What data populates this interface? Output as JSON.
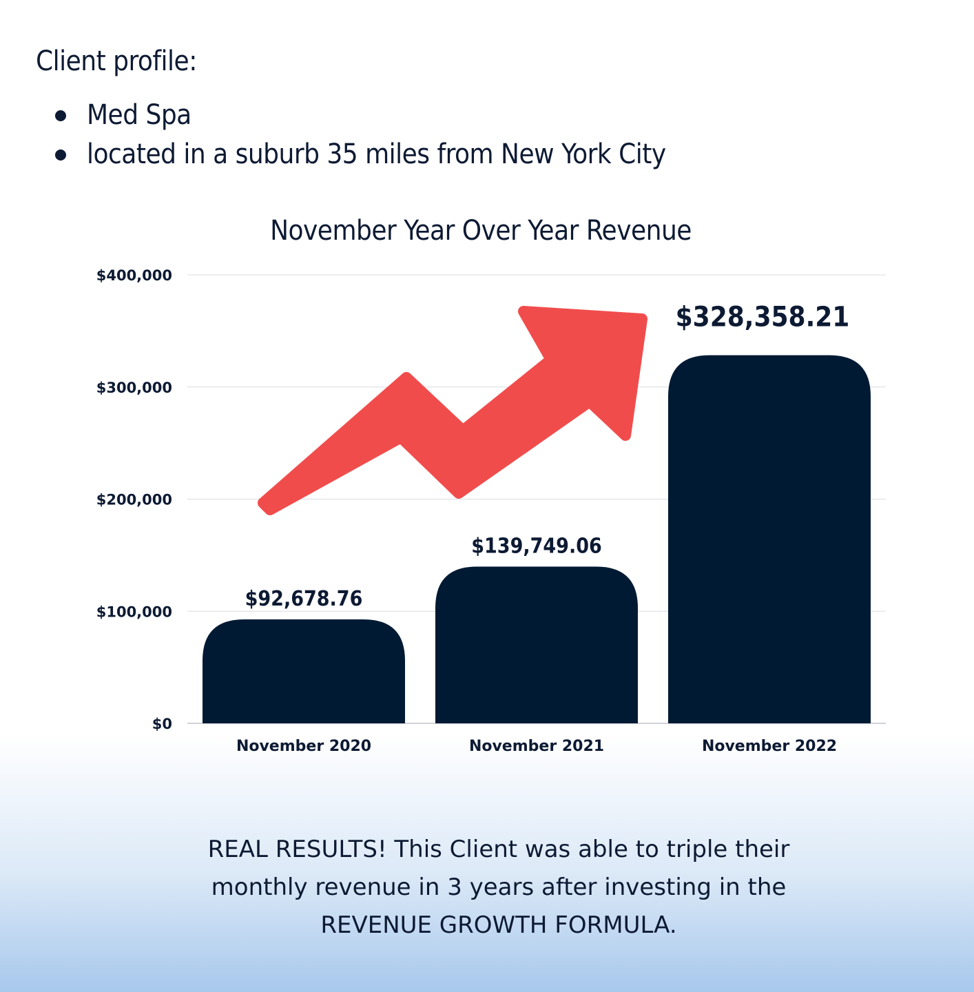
{
  "profile": {
    "title": "Client profile:",
    "items": [
      "Med Spa",
      "located in a suburb 35 miles from New York City"
    ]
  },
  "chart_data": {
    "type": "bar",
    "title": "November Year Over Year Revenue",
    "xlabel": "",
    "ylabel": "",
    "categories": [
      "November 2020",
      "November 2021",
      "November 2022"
    ],
    "values": [
      92678.76,
      139749.06,
      328358.21
    ],
    "data_labels": [
      "$92,678.76",
      "$139,749.06",
      "$328,358.21"
    ],
    "ylim": [
      0,
      400000
    ],
    "yticks": [
      0,
      100000,
      200000,
      300000,
      400000
    ],
    "ytick_labels": [
      "$0",
      "$100,000",
      "$200,000",
      "$300,000",
      "$400,000"
    ],
    "grid": true,
    "bar_color": "#011a33",
    "arrow_color": "#f14c4c"
  },
  "footer": {
    "lines": [
      "REAL RESULTS! This Client was able to triple their",
      "monthly revenue in 3 years after investing in the",
      "REVENUE GROWTH FORMULA."
    ]
  }
}
